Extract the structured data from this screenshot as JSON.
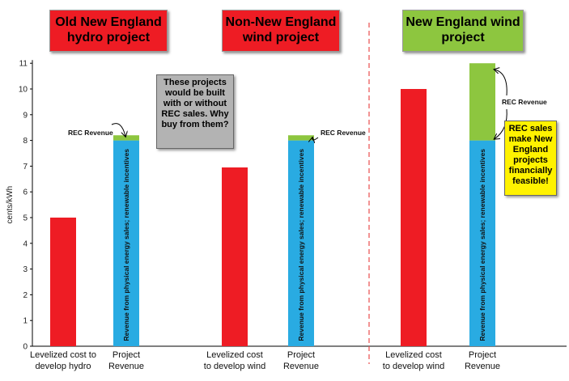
{
  "colors": {
    "cost": "#ee1c24",
    "revenue": "#29abe2",
    "rec": "#8dc63f",
    "divider": "#e84c4c",
    "title_red": "#ee1c24",
    "title_green": "#8dc63f",
    "note_gray": "#b3b3b3",
    "note_yellow": "#fff200"
  },
  "titles": {
    "old_ne_hydro": "Old New England hydro project",
    "non_ne_wind": "Non-New England wind project",
    "ne_wind": "New England wind project"
  },
  "notes": {
    "gray": "These projects would be built with or without REC sales. Why buy from them?",
    "yellow": "REC sales make New England projects financially feasible!"
  },
  "chart_data": {
    "type": "bar",
    "ylabel": "cents/kWh",
    "ylim": [
      0,
      11
    ],
    "yticks": [
      0,
      1,
      2,
      3,
      4,
      5,
      6,
      7,
      8,
      9,
      10,
      11
    ],
    "inside_bar_label": "Revenue from physical energy sales; renewable incentives",
    "rec_label": "REC Revenue",
    "groups": [
      {
        "title": "Old New England hydro project",
        "cost_label": [
          "Levelized cost to",
          "develop hydro"
        ],
        "revenue_label": [
          "Project",
          "Revenue"
        ],
        "cost": 5.0,
        "revenue_physical": 8.0,
        "rec": 0.2
      },
      {
        "title": "Non-New England wind project",
        "cost_label": [
          "Levelized cost",
          "to develop wind"
        ],
        "revenue_label": [
          "Project",
          "Revenue"
        ],
        "cost": 6.95,
        "revenue_physical": 8.0,
        "rec": 0.2
      },
      {
        "title": "New England wind project",
        "cost_label": [
          "Levelized cost",
          "to develop wind"
        ],
        "revenue_label": [
          "Project",
          "Revenue"
        ],
        "cost": 10.0,
        "revenue_physical": 8.0,
        "rec": 3.0
      }
    ]
  }
}
